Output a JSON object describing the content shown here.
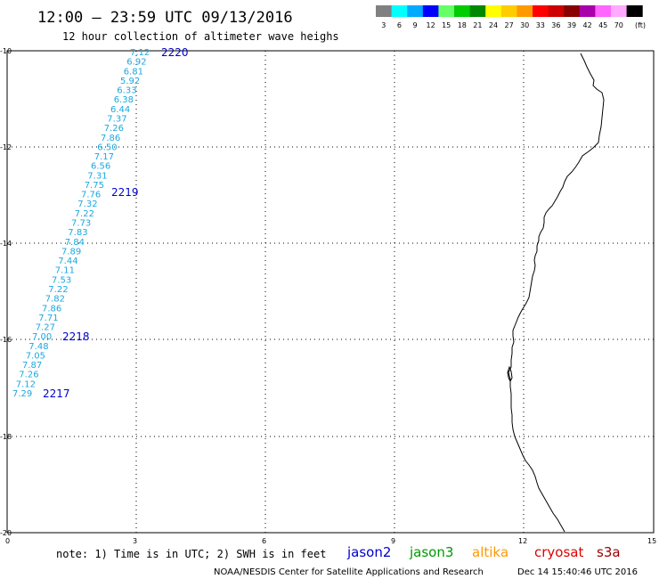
{
  "title": "12:00 – 23:59 UTC 09/13/2016",
  "subtitle": "12 hour collection of altimeter wave heighs",
  "legend": {
    "unit": "(ft)",
    "bins": [
      {
        "color": "#808080",
        "label": "3"
      },
      {
        "color": "#00ffff",
        "label": "6"
      },
      {
        "color": "#00aaff",
        "label": "9"
      },
      {
        "color": "#0000ff",
        "label": "12"
      },
      {
        "color": "#66ff66",
        "label": "15"
      },
      {
        "color": "#00cc00",
        "label": "18"
      },
      {
        "color": "#008800",
        "label": "21"
      },
      {
        "color": "#ffff00",
        "label": "24"
      },
      {
        "color": "#ffcc00",
        "label": "27"
      },
      {
        "color": "#ff9900",
        "label": "30"
      },
      {
        "color": "#ff0000",
        "label": "33"
      },
      {
        "color": "#cc0000",
        "label": "36"
      },
      {
        "color": "#880000",
        "label": "39"
      },
      {
        "color": "#aa00aa",
        "label": "42"
      },
      {
        "color": "#ff66ff",
        "label": "45"
      },
      {
        "color": "#ffaaff",
        "label": "70"
      },
      {
        "color": "#000000",
        "label": ""
      }
    ]
  },
  "axes": {
    "x_ticks": [
      "0",
      "3",
      "6",
      "9",
      "12",
      "15"
    ],
    "y_ticks": [
      "-10",
      "-12",
      "-14",
      "-16",
      "-18",
      "-20"
    ]
  },
  "swh_values": [
    "7.12",
    "6.92",
    "6.81",
    "5.92",
    "6.33",
    "6.38",
    "6.44",
    "7.37",
    "7.26",
    "7.86",
    "6.50",
    "7.17",
    "6.56",
    "7.31",
    "7.75",
    "7.76",
    "7.32",
    "7.22",
    "7.73",
    "7.83",
    "7.84",
    "7.89",
    "7.44",
    "7.11",
    "7.53",
    "7.22",
    "7.82",
    "7.86",
    "7.71",
    "7.27",
    "7.00",
    "7.48",
    "7.05",
    "7.87",
    "7.26",
    "7.12",
    "7.29"
  ],
  "passes": [
    "2220",
    "2219",
    "2218",
    "2217"
  ],
  "note": "note: 1) Time is in UTC; 2) SWH is in feet",
  "satellites": [
    {
      "name": "jason2",
      "color": "#0000cc"
    },
    {
      "name": "jason3",
      "color": "#009900"
    },
    {
      "name": "altika",
      "color": "#ff9900"
    },
    {
      "name": "cryosat",
      "color": "#dd0000"
    },
    {
      "name": "s3a",
      "color": "#990000"
    }
  ],
  "credit": "NOAA/NESDIS Center for Satellite Applications and Research",
  "timestamp": "Dec 14 15:40:46 UTC 2016"
}
